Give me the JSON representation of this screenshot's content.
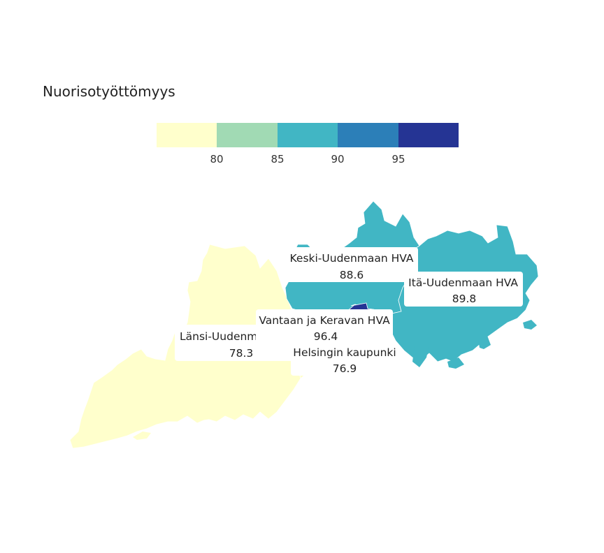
{
  "title": "Nuorisotyöttömyys",
  "legend": {
    "colors": [
      "#ffffcc",
      "#a1dab4",
      "#41b6c4",
      "#2c7fb8",
      "#253494"
    ],
    "ticks": [
      "80",
      "85",
      "90",
      "95"
    ]
  },
  "regions": [
    {
      "name": "Keski-Uudenmaan HVA",
      "value": "88.6",
      "color": "#41b6c4"
    },
    {
      "name": "Itä-Uudenmaan HVA",
      "value": "89.8",
      "color": "#41b6c4"
    },
    {
      "name": "Vantaan ja Keravan HVA",
      "value": "96.4",
      "color": "#253494"
    },
    {
      "name": "Länsi-Uudenmaan HVA",
      "value": "78.3",
      "color": "#ffffcc"
    },
    {
      "name": "Helsingin kaupunki",
      "value": "76.9",
      "color": "#ffffcc"
    }
  ]
}
